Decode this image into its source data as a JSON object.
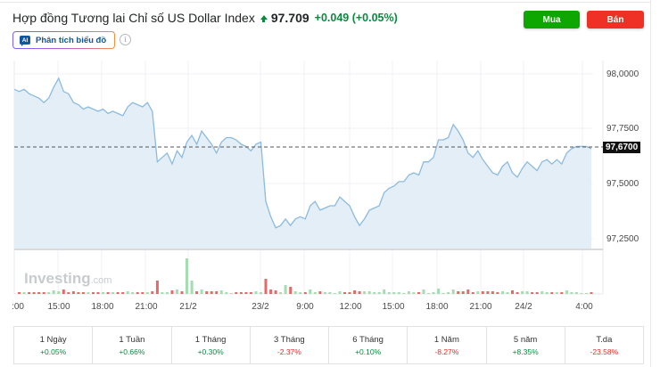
{
  "header": {
    "title": "Hợp đồng Tương lai Chỉ số US Dollar Index",
    "price": "97.709",
    "change": "+0.049 (+0.05%)",
    "direction_icon": "arrow-up-icon",
    "buy_label": "Mua",
    "sell_label": "Bán",
    "ai_badge": "AI",
    "ai_button_label": "Phân tích biểu đồ",
    "info_icon": "info-icon"
  },
  "colors": {
    "buy": "#0ea600",
    "sell": "#ee3124",
    "positive": "#0a8a3e",
    "negative": "#e12b2b",
    "line": "#8bbbe0",
    "fill": "#e4eef6",
    "volume_up": "#a6dcb1",
    "volume_down": "#e46a6a"
  },
  "chart": {
    "watermark": "Investing",
    "watermark_suffix": ".com",
    "y_labels": [
      "98,0000",
      "97,7500",
      "97,5000",
      "97,2500"
    ],
    "last_price_label": "97,6700",
    "x_labels": [
      ":00",
      "15:00",
      "18:00",
      "21:00",
      "21/2",
      "23/2",
      "9:00",
      "12:00",
      "15:00",
      "18:00",
      "21:00",
      "24/2",
      "4:00"
    ]
  },
  "chart_data": {
    "type": "area",
    "title": "Hợp đồng Tương lai Chỉ số US Dollar Index",
    "xlabel": "",
    "ylabel": "",
    "ylim": [
      97.15,
      98.06
    ],
    "y_ticks": [
      98.0,
      97.75,
      97.5,
      97.25
    ],
    "x_tick_labels": [
      ":00",
      "15:00",
      "18:00",
      "21:00",
      "21/2",
      "23/2",
      "9:00",
      "12:00",
      "15:00",
      "18:00",
      "21:00",
      "24/2",
      "4:00"
    ],
    "current_price_line": 97.67,
    "grid": true,
    "series": [
      {
        "name": "US Dollar Index Futures",
        "values": [
          97.93,
          97.92,
          97.93,
          97.91,
          97.9,
          97.89,
          97.87,
          97.89,
          97.94,
          97.98,
          97.92,
          97.91,
          97.87,
          97.86,
          97.84,
          97.85,
          97.84,
          97.83,
          97.84,
          97.82,
          97.83,
          97.82,
          97.81,
          97.85,
          97.87,
          97.86,
          97.85,
          97.87,
          97.83,
          97.6,
          97.62,
          97.64,
          97.59,
          97.65,
          97.62,
          97.69,
          97.72,
          97.68,
          97.74,
          97.71,
          97.68,
          97.64,
          97.69,
          97.71,
          97.71,
          97.7,
          97.68,
          97.67,
          97.65,
          97.68,
          97.69,
          97.42,
          97.35,
          97.3,
          97.31,
          97.34,
          97.31,
          97.34,
          97.35,
          97.34,
          97.4,
          97.42,
          97.38,
          97.39,
          97.4,
          97.4,
          97.44,
          97.42,
          97.4,
          97.35,
          97.31,
          97.34,
          97.38,
          97.39,
          97.4,
          97.46,
          97.48,
          97.49,
          97.51,
          97.51,
          97.54,
          97.55,
          97.54,
          97.6,
          97.6,
          97.62,
          97.7,
          97.7,
          97.71,
          97.77,
          97.74,
          97.7,
          97.64,
          97.62,
          97.65,
          97.61,
          97.58,
          97.55,
          97.54,
          97.58,
          97.6,
          97.55,
          97.53,
          97.57,
          97.6,
          97.58,
          97.56,
          97.6,
          97.61,
          97.59,
          97.61,
          97.59,
          97.64,
          97.66,
          97.67,
          97.67,
          97.67,
          97.66
        ]
      }
    ],
    "volume": {
      "description": "Volume bars below price chart; red = down, green = up; spike near 21:00-21/2",
      "peak_location": "between 21:00 and 21/2"
    }
  },
  "performance": [
    {
      "label": "1 Ngày",
      "value": "+0.05%",
      "sign": "pos"
    },
    {
      "label": "1 Tuần",
      "value": "+0.66%",
      "sign": "pos"
    },
    {
      "label": "1 Tháng",
      "value": "+0.30%",
      "sign": "pos"
    },
    {
      "label": "3 Tháng",
      "value": "-2.37%",
      "sign": "neg"
    },
    {
      "label": "6 Tháng",
      "value": "+0.10%",
      "sign": "pos"
    },
    {
      "label": "1 Năm",
      "value": "-8.27%",
      "sign": "neg"
    },
    {
      "label": "5 năm",
      "value": "+8.35%",
      "sign": "pos"
    },
    {
      "label": "T.da",
      "value": "-23.58%",
      "sign": "neg"
    }
  ]
}
